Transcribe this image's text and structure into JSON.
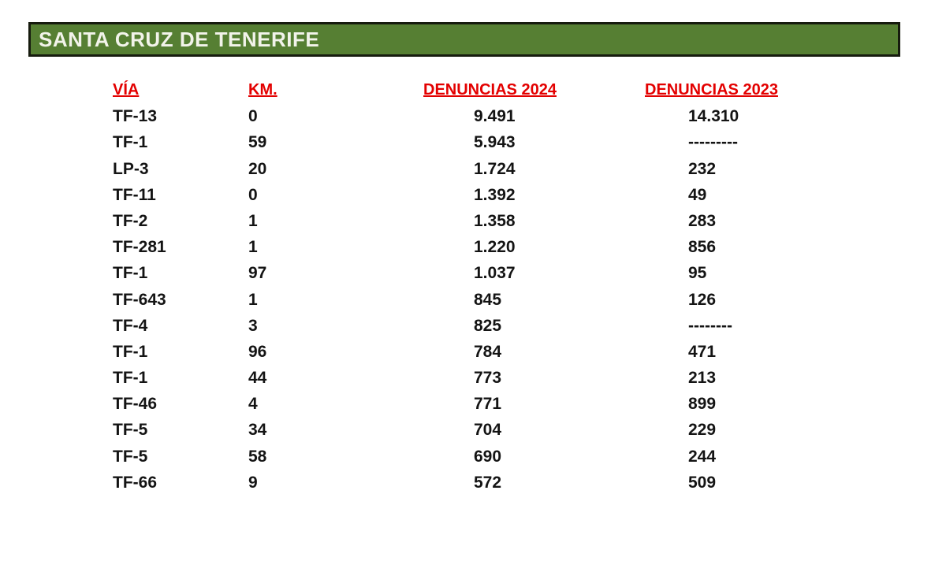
{
  "header": {
    "title": "SANTA CRUZ DE TENERIFE",
    "bg_color": "#567f33",
    "border_color": "#161b0e",
    "text_color": "#f2f3ea"
  },
  "table": {
    "accent_color": "#e30000",
    "columns": [
      "VÍA",
      "KM.",
      "DENUNCIAS 2024",
      "DENUNCIAS 2023"
    ],
    "rows": [
      {
        "via": "TF-13",
        "km": "0",
        "d2024": "9.491",
        "d2023": "14.310"
      },
      {
        "via": "TF-1",
        "km": "59",
        "d2024": "5.943",
        "d2023": "---------"
      },
      {
        "via": "LP-3",
        "km": "20",
        "d2024": "1.724",
        "d2023": "232"
      },
      {
        "via": "TF-11",
        "km": "0",
        "d2024": "1.392",
        "d2023": "49"
      },
      {
        "via": "TF-2",
        "km": "1",
        "d2024": "1.358",
        "d2023": "283"
      },
      {
        "via": "TF-281",
        "km": "1",
        "d2024": "1.220",
        "d2023": "856"
      },
      {
        "via": "TF-1",
        "km": "97",
        "d2024": "1.037",
        "d2023": "95"
      },
      {
        "via": "TF-643",
        "km": "1",
        "d2024": "845",
        "d2023": "126"
      },
      {
        "via": "TF-4",
        "km": "3",
        "d2024": "825",
        "d2023": "--------"
      },
      {
        "via": "TF-1",
        "km": "96",
        "d2024": "784",
        "d2023": "471"
      },
      {
        "via": "TF-1",
        "km": "44",
        "d2024": "773",
        "d2023": "213"
      },
      {
        "via": "TF-46",
        "km": "4",
        "d2024": "771",
        "d2023": "899"
      },
      {
        "via": "TF-5",
        "km": "34",
        "d2024": "704",
        "d2023": "229"
      },
      {
        "via": "TF-5",
        "km": "58",
        "d2024": "690",
        "d2023": "244"
      },
      {
        "via": "TF-66",
        "km": "9",
        "d2024": "572",
        "d2023": "509"
      }
    ]
  }
}
